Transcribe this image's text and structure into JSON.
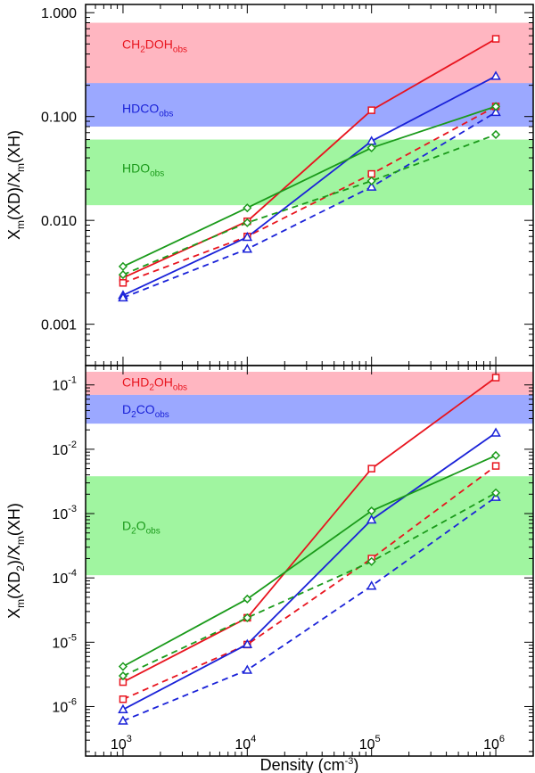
{
  "chart_data": [
    {
      "type": "line",
      "panel": "top",
      "yscale": "log",
      "ylabel": "X_m(XD)/X_m(XH)",
      "ylabel_parts": {
        "main1": "X",
        "sub1": "m",
        "mid": "(XD)/X",
        "sub2": "m",
        "end": "(XH)"
      },
      "ylim": [
        0.0004,
        1.2
      ],
      "yticks": [
        {
          "value": 0.001,
          "label": "0.001"
        },
        {
          "value": 0.01,
          "label": "0.010"
        },
        {
          "value": 0.1,
          "label": "0.100"
        },
        {
          "value": 1.0,
          "label": "1.000"
        }
      ],
      "x": [
        1000,
        10000,
        100000,
        1000000
      ],
      "bands": [
        {
          "name": "CH2DOH_obs",
          "parts": [
            "CH",
            "2",
            "DOH",
            "obs"
          ],
          "lo": 0.08,
          "hi": 0.8,
          "color": "#ffb6c1",
          "text_color": "#e8141e",
          "label_value": 0.5
        },
        {
          "name": "HDCO_obs",
          "parts": [
            "HDCO",
            "",
            "",
            "obs"
          ],
          "lo": 0.08,
          "hi": 0.21,
          "color": "#9ba8ff",
          "text_color": "#1a22d8",
          "label_value": 0.12
        },
        {
          "name": "HDO_obs",
          "parts": [
            "HDO",
            "",
            "",
            "obs"
          ],
          "lo": 0.014,
          "hi": 0.06,
          "color": "#a0f5a0",
          "text_color": "#1a9a1a",
          "label_value": 0.032
        }
      ],
      "series": [
        {
          "name": "CH2DOH solid",
          "color": "#e8141e",
          "dash": false,
          "marker": "square",
          "values": [
            0.0028,
            0.0098,
            0.115,
            0.56
          ]
        },
        {
          "name": "CH2DOH dashed",
          "color": "#e8141e",
          "dash": true,
          "marker": "square",
          "values": [
            0.0025,
            0.007,
            0.028,
            0.125
          ]
        },
        {
          "name": "HDCO solid",
          "color": "#1a22d8",
          "dash": false,
          "marker": "triangle",
          "values": [
            0.0019,
            0.0069,
            0.058,
            0.245
          ]
        },
        {
          "name": "HDCO dashed",
          "color": "#1a22d8",
          "dash": true,
          "marker": "triangle",
          "values": [
            0.0018,
            0.0053,
            0.021,
            0.11
          ]
        },
        {
          "name": "HDO solid",
          "color": "#1a9a1a",
          "dash": false,
          "marker": "diamond",
          "values": [
            0.0036,
            0.0132,
            0.05,
            0.125
          ]
        },
        {
          "name": "HDO dashed",
          "color": "#1a9a1a",
          "dash": true,
          "marker": "diamond",
          "values": [
            0.003,
            0.0095,
            0.024,
            0.067
          ]
        }
      ]
    },
    {
      "type": "line",
      "panel": "bottom",
      "yscale": "log",
      "ylabel": "X_m(XD_2)/X_m(XH)",
      "ylabel_parts": {
        "main1": "X",
        "sub1": "m",
        "mid": "(XD",
        "sub2": "2",
        "mid2": ")/X",
        "sub3": "m",
        "end": "(XH)"
      },
      "ylim": [
        1.7e-07,
        0.2
      ],
      "yticks": [
        {
          "value": 1e-06,
          "base": "10",
          "exp": "-6"
        },
        {
          "value": 1e-05,
          "base": "10",
          "exp": "-5"
        },
        {
          "value": 0.0001,
          "base": "10",
          "exp": "-4"
        },
        {
          "value": 0.001,
          "base": "10",
          "exp": "-3"
        },
        {
          "value": 0.01,
          "base": "10",
          "exp": "-2"
        },
        {
          "value": 0.1,
          "base": "10",
          "exp": "-1"
        }
      ],
      "x": [
        1000,
        10000,
        100000,
        1000000
      ],
      "bands": [
        {
          "name": "CHD2OH_obs",
          "parts": [
            "CHD",
            "2",
            "OH",
            "obs"
          ],
          "lo": 0.07,
          "hi": 0.16,
          "color": "#ffb6c1",
          "text_color": "#e8141e",
          "label_value": 0.11
        },
        {
          "name": "D2CO_obs",
          "parts": [
            "D",
            "2",
            "CO",
            "obs"
          ],
          "lo": 0.025,
          "hi": 0.07,
          "color": "#9ba8ff",
          "text_color": "#1a22d8",
          "label_value": 0.042
        },
        {
          "name": "D2O_obs",
          "parts": [
            "D",
            "2",
            "O",
            "obs"
          ],
          "lo": 0.00011,
          "hi": 0.0038,
          "color": "#a0f5a0",
          "text_color": "#1a9a1a",
          "label_value": 0.00065
        }
      ],
      "series": [
        {
          "name": "CHD2OH solid",
          "color": "#e8141e",
          "dash": false,
          "marker": "square",
          "values": [
            2.4e-06,
            2.4e-05,
            0.005,
            0.13
          ]
        },
        {
          "name": "CHD2OH dashed",
          "color": "#e8141e",
          "dash": true,
          "marker": "square",
          "values": [
            1.3e-06,
            9.2e-06,
            0.0002,
            0.0055
          ]
        },
        {
          "name": "D2CO solid",
          "color": "#1a22d8",
          "dash": false,
          "marker": "triangle",
          "values": [
            9e-07,
            9.3e-06,
            0.0008,
            0.018
          ]
        },
        {
          "name": "D2CO dashed",
          "color": "#1a22d8",
          "dash": true,
          "marker": "triangle",
          "values": [
            6e-07,
            3.7e-06,
            7.5e-05,
            0.0018
          ]
        },
        {
          "name": "D2O solid",
          "color": "#1a9a1a",
          "dash": false,
          "marker": "diamond",
          "values": [
            4.2e-06,
            4.7e-05,
            0.0011,
            0.008
          ]
        },
        {
          "name": "D2O dashed",
          "color": "#1a9a1a",
          "dash": true,
          "marker": "diamond",
          "values": [
            3e-06,
            2.4e-05,
            0.00018,
            0.0021
          ]
        }
      ]
    }
  ],
  "x_axis": {
    "title": "Density (cm^-3)",
    "title_main": "Density (cm",
    "title_exp": "-3",
    "title_end": ")",
    "xlim": [
      500,
      2000000
    ],
    "ticks": [
      {
        "value": 1000,
        "base": "10",
        "exp": "3"
      },
      {
        "value": 10000,
        "base": "10",
        "exp": "4"
      },
      {
        "value": 100000,
        "base": "10",
        "exp": "5"
      },
      {
        "value": 1000000,
        "base": "10",
        "exp": "6"
      }
    ]
  }
}
